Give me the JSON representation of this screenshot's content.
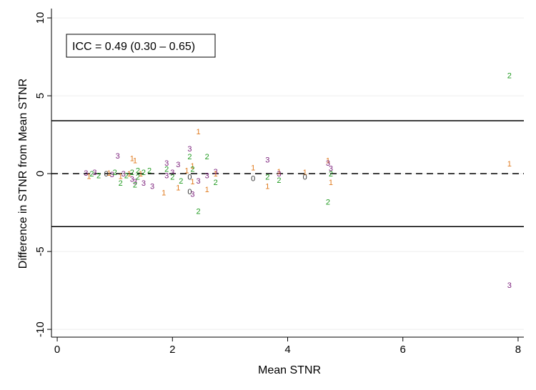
{
  "chart_data": {
    "type": "scatter",
    "xlabel": "Mean STNR",
    "ylabel": "Difference in STNR from Mean STNR",
    "xlim": [
      -0.1,
      8.1
    ],
    "ylim": [
      -10.5,
      10.6
    ],
    "xticks": [
      "0",
      "2",
      "4",
      "6",
      "8"
    ],
    "yticks": [
      "10",
      "5",
      "0",
      "-5",
      "-10"
    ],
    "grid": true,
    "annotation": "ICC = 0.49 (0.30 – 0.65)",
    "reference_lines": [
      {
        "y": 3.4,
        "style": "solid"
      },
      {
        "y": 0,
        "style": "dashed"
      },
      {
        "y": -3.4,
        "style": "solid"
      }
    ],
    "colors": {
      "1": "#e07b1f",
      "2": "#1f9a1f",
      "3": "#7b1f7b",
      "0": "#333333"
    },
    "points": [
      {
        "x": 0.5,
        "y": 0.05,
        "label": "3"
      },
      {
        "x": 0.55,
        "y": -0.15,
        "label": "1"
      },
      {
        "x": 0.6,
        "y": 0.0,
        "label": "2"
      },
      {
        "x": 0.65,
        "y": 0.1,
        "label": "3"
      },
      {
        "x": 0.72,
        "y": -0.1,
        "label": "2"
      },
      {
        "x": 0.85,
        "y": 0.0,
        "label": "0"
      },
      {
        "x": 0.9,
        "y": 0.05,
        "label": "1"
      },
      {
        "x": 0.95,
        "y": -0.05,
        "label": "3"
      },
      {
        "x": 1.05,
        "y": 1.15,
        "label": "3"
      },
      {
        "x": 1.0,
        "y": 0.1,
        "label": "2"
      },
      {
        "x": 1.1,
        "y": -0.15,
        "label": "1"
      },
      {
        "x": 1.1,
        "y": -0.6,
        "label": "2"
      },
      {
        "x": 1.15,
        "y": 0.0,
        "label": "3"
      },
      {
        "x": 1.2,
        "y": -0.1,
        "label": "2"
      },
      {
        "x": 1.25,
        "y": 0.0,
        "label": "1"
      },
      {
        "x": 1.3,
        "y": 1.0,
        "label": "1"
      },
      {
        "x": 1.35,
        "y": 0.85,
        "label": "1"
      },
      {
        "x": 1.3,
        "y": 0.1,
        "label": "2"
      },
      {
        "x": 1.3,
        "y": -0.35,
        "label": "3"
      },
      {
        "x": 1.35,
        "y": -0.5,
        "label": "3"
      },
      {
        "x": 1.35,
        "y": -0.7,
        "label": "2"
      },
      {
        "x": 1.4,
        "y": 0.2,
        "label": "2"
      },
      {
        "x": 1.4,
        "y": -0.2,
        "label": "2"
      },
      {
        "x": 1.45,
        "y": 0.0,
        "label": "1"
      },
      {
        "x": 1.5,
        "y": 0.1,
        "label": "2"
      },
      {
        "x": 1.5,
        "y": -0.6,
        "label": "3"
      },
      {
        "x": 1.6,
        "y": 0.2,
        "label": "2"
      },
      {
        "x": 1.65,
        "y": -0.8,
        "label": "3"
      },
      {
        "x": 1.9,
        "y": 0.7,
        "label": "3"
      },
      {
        "x": 1.9,
        "y": 0.3,
        "label": "2"
      },
      {
        "x": 1.9,
        "y": -0.1,
        "label": "3"
      },
      {
        "x": 1.85,
        "y": -1.2,
        "label": "1"
      },
      {
        "x": 2.0,
        "y": 0.1,
        "label": "3"
      },
      {
        "x": 2.0,
        "y": -0.2,
        "label": "2"
      },
      {
        "x": 2.1,
        "y": 0.6,
        "label": "3"
      },
      {
        "x": 2.15,
        "y": -0.45,
        "label": "2"
      },
      {
        "x": 2.1,
        "y": -0.9,
        "label": "1"
      },
      {
        "x": 2.25,
        "y": 0.2,
        "label": "1"
      },
      {
        "x": 2.3,
        "y": 1.1,
        "label": "2"
      },
      {
        "x": 2.3,
        "y": 1.6,
        "label": "3"
      },
      {
        "x": 2.35,
        "y": 0.5,
        "label": "1"
      },
      {
        "x": 2.35,
        "y": 0.3,
        "label": "2"
      },
      {
        "x": 2.3,
        "y": -0.2,
        "label": "0"
      },
      {
        "x": 2.35,
        "y": -0.5,
        "label": "1"
      },
      {
        "x": 2.3,
        "y": -1.15,
        "label": "0"
      },
      {
        "x": 2.35,
        "y": -1.3,
        "label": "3"
      },
      {
        "x": 2.45,
        "y": 2.7,
        "label": "1"
      },
      {
        "x": 2.45,
        "y": -0.45,
        "label": "3"
      },
      {
        "x": 2.45,
        "y": -2.4,
        "label": "2"
      },
      {
        "x": 2.6,
        "y": 1.1,
        "label": "2"
      },
      {
        "x": 2.6,
        "y": -0.1,
        "label": "3"
      },
      {
        "x": 2.6,
        "y": -1.0,
        "label": "1"
      },
      {
        "x": 2.75,
        "y": 0.15,
        "label": "3"
      },
      {
        "x": 2.75,
        "y": 0.0,
        "label": "1"
      },
      {
        "x": 2.75,
        "y": -0.55,
        "label": "2"
      },
      {
        "x": 3.4,
        "y": 0.4,
        "label": "1"
      },
      {
        "x": 3.4,
        "y": -0.3,
        "label": "0"
      },
      {
        "x": 3.65,
        "y": 0.9,
        "label": "3"
      },
      {
        "x": 3.65,
        "y": -0.2,
        "label": "2"
      },
      {
        "x": 3.65,
        "y": -0.8,
        "label": "1"
      },
      {
        "x": 3.85,
        "y": 0.15,
        "label": "1"
      },
      {
        "x": 3.85,
        "y": 0.0,
        "label": "3"
      },
      {
        "x": 3.85,
        "y": -0.4,
        "label": "2"
      },
      {
        "x": 4.3,
        "y": 0.1,
        "label": "1"
      },
      {
        "x": 4.3,
        "y": -0.2,
        "label": "0"
      },
      {
        "x": 4.7,
        "y": 0.85,
        "label": "1"
      },
      {
        "x": 4.7,
        "y": 0.7,
        "label": "3"
      },
      {
        "x": 4.75,
        "y": 0.35,
        "label": "3"
      },
      {
        "x": 4.75,
        "y": 0.0,
        "label": "2"
      },
      {
        "x": 4.75,
        "y": -0.55,
        "label": "1"
      },
      {
        "x": 4.7,
        "y": -1.8,
        "label": "2"
      },
      {
        "x": 7.85,
        "y": 6.3,
        "label": "2"
      },
      {
        "x": 7.85,
        "y": 0.65,
        "label": "1"
      },
      {
        "x": 7.85,
        "y": -7.15,
        "label": "3"
      }
    ]
  }
}
